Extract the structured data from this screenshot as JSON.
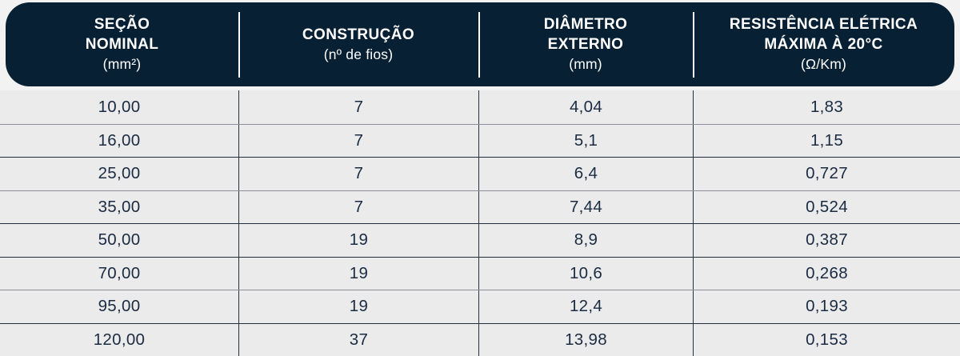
{
  "table": {
    "columns": [
      {
        "title_lines": [
          "SEÇÃO",
          "NOMINAL"
        ],
        "unit": "(mm²)"
      },
      {
        "title_lines": [
          "CONSTRUÇÃO"
        ],
        "unit": "(nº de fios)"
      },
      {
        "title_lines": [
          "DIÂMETRO",
          "EXTERNO"
        ],
        "unit": "(mm)"
      },
      {
        "title_lines": [
          "RESISTÊNCIA ELÉTRICA",
          "MÁXIMA À 20°C"
        ],
        "unit": "(Ω/Km)"
      }
    ],
    "rows": [
      [
        "10,00",
        "7",
        "4,04",
        "1,83"
      ],
      [
        "16,00",
        "7",
        "5,1",
        "1,15"
      ],
      [
        "25,00",
        "7",
        "6,4",
        "0,727"
      ],
      [
        "35,00",
        "7",
        "7,44",
        "0,524"
      ],
      [
        "50,00",
        "19",
        "8,9",
        "0,387"
      ],
      [
        "70,00",
        "19",
        "10,6",
        "0,268"
      ],
      [
        "95,00",
        "19",
        "12,4",
        "0,193"
      ],
      [
        "120,00",
        "37",
        "13,98",
        "0,153"
      ]
    ]
  },
  "colors": {
    "header_bg": "#082034",
    "row_bg": "#ebebec",
    "page_bg": "#f2f2f3",
    "body_text": "#1a2b42",
    "header_text": "#ffffff"
  }
}
